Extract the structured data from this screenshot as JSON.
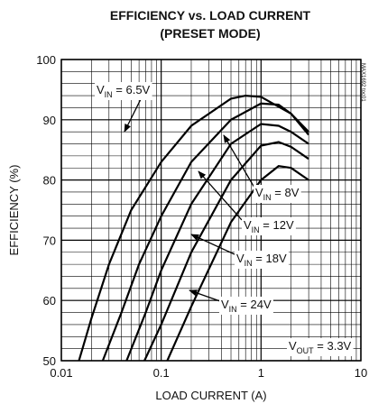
{
  "chart_data": {
    "type": "line",
    "title": [
      "EFFICIENCY vs. LOAD CURRENT",
      "(PRESET MODE)"
    ],
    "xlabel": "LOAD CURRENT (A)",
    "ylabel": "EFFICIENCY (%)",
    "xscale": "log",
    "xlim": [
      0.01,
      10
    ],
    "xticks": [
      0.01,
      0.1,
      1,
      10
    ],
    "ylim": [
      50,
      100
    ],
    "yticks": [
      50,
      60,
      70,
      80,
      90,
      100
    ],
    "grid": true,
    "series": [
      {
        "name": "6.5V",
        "color": "#000000",
        "x": [
          0.015,
          0.02,
          0.03,
          0.05,
          0.1,
          0.2,
          0.5,
          0.7,
          1,
          2,
          3
        ],
        "values": [
          50,
          57,
          66,
          75,
          83,
          89,
          93.5,
          94,
          93.8,
          91,
          88
        ]
      },
      {
        "name": "8V",
        "color": "#000000",
        "x": [
          0.026,
          0.04,
          0.06,
          0.1,
          0.2,
          0.5,
          1,
          1.5,
          2,
          3
        ],
        "values": [
          50,
          58,
          66,
          74,
          83,
          90,
          92.7,
          92.5,
          91,
          87.5
        ]
      },
      {
        "name": "12V",
        "color": "#000000",
        "x": [
          0.045,
          0.07,
          0.1,
          0.2,
          0.5,
          1,
          1.5,
          2,
          3
        ],
        "values": [
          50,
          58,
          65,
          76,
          86,
          89.3,
          89,
          88,
          86
        ]
      },
      {
        "name": "18V",
        "color": "#000000",
        "x": [
          0.068,
          0.1,
          0.2,
          0.5,
          1,
          1.5,
          2,
          3
        ],
        "values": [
          50,
          56,
          68,
          80,
          85.7,
          86.3,
          85.5,
          83.5
        ]
      },
      {
        "name": "24V",
        "color": "#000000",
        "x": [
          0.115,
          0.2,
          0.5,
          1,
          1.5,
          2,
          3
        ],
        "values": [
          50,
          59,
          73,
          80,
          82.3,
          82,
          80
        ]
      }
    ],
    "annotations": [
      {
        "main": "V",
        "sub": "IN",
        "rest": " = 6.5V"
      },
      {
        "main": "V",
        "sub": "IN",
        "rest": " = 8V"
      },
      {
        "main": "V",
        "sub": "IN",
        "rest": " = 12V"
      },
      {
        "main": "V",
        "sub": "IN",
        "rest": " = 18V"
      },
      {
        "main": "V",
        "sub": "IN",
        "rest": " = 24V"
      },
      {
        "main": "V",
        "sub": "OUT",
        "rest": " = 3.3V"
      }
    ],
    "figure_id": "MAX1692 toc01"
  }
}
